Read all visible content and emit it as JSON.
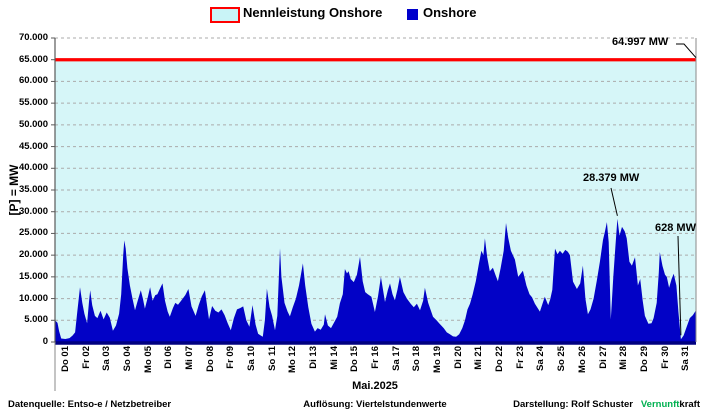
{
  "legend": {
    "capacity_label": "Nennleistung Onshore",
    "onshore_label": "Onshore"
  },
  "colors": {
    "onshore_area": "#0202c6",
    "legend_onshore_square": "#0000cc",
    "capacity_line": "#ff0000",
    "capacity_fill": "#d6f6f8",
    "legend_capacity_fill": "#c9f4f7",
    "grid": "#ababab",
    "axis_bottom": "#000080",
    "brand_green": "#00b050"
  },
  "y_axis": {
    "title": "[P] = MW",
    "tick_labels": [
      "70.000",
      "65.000",
      "60.000",
      "55.000",
      "50.000",
      "45.000",
      "40.000",
      "35.000",
      "30.000",
      "25.000",
      "20.000",
      "15.000",
      "10.000",
      "5.000",
      "0"
    ]
  },
  "x_axis": {
    "title": "Mai.2025",
    "labels": [
      "Do 01",
      "Fr 02",
      "Sa 03",
      "So 04",
      "Mo 05",
      "Di 06",
      "Mi 07",
      "Do 08",
      "Fr 09",
      "Sa 10",
      "So 11",
      "Mo 12",
      "Di 13",
      "Mi 14",
      "Do 15",
      "Fr 16",
      "Sa 17",
      "So 18",
      "Mo 19",
      "Di 20",
      "Mi 21",
      "Do 22",
      "Fr 23",
      "Sa 24",
      "So 25",
      "Mo 26",
      "Di 27",
      "Mi 28",
      "Do 29",
      "Fr 30",
      "Sa 31"
    ]
  },
  "footer": {
    "source": "Datenquelle:  Entso-e  / Netzbetreiber",
    "resolution": "Auflösung: Viertelstundenwerte",
    "credit": "Darstellung:  Rolf Schuster",
    "brand_green": "Vernunft",
    "brand_black": "kraft"
  },
  "chart_data": {
    "type": "area",
    "title": "",
    "xlabel": "Mai.2025",
    "ylabel": "[P] = MW",
    "ylim": [
      0,
      70000
    ],
    "x_days": 31,
    "resolution": "Viertelstundenwerte",
    "capacity_mw": 64997,
    "annotations": [
      {
        "text": "64.997 MW",
        "day": 31,
        "mw": 64997
      },
      {
        "text": "28.379 MW",
        "day": 27.2,
        "mw": 28379
      },
      {
        "text": "628 MW",
        "day": 30.27,
        "mw": 628
      }
    ],
    "series": [
      {
        "name": "Onshore",
        "points": [
          [
            0,
            5000
          ],
          [
            0.12,
            4400
          ],
          [
            0.2,
            2500
          ],
          [
            0.3,
            800
          ],
          [
            0.5,
            700
          ],
          [
            0.7,
            900
          ],
          [
            0.85,
            1500
          ],
          [
            0.97,
            2200
          ],
          [
            1.08,
            7000
          ],
          [
            1.21,
            12600
          ],
          [
            1.32,
            9000
          ],
          [
            1.42,
            6500
          ],
          [
            1.55,
            4300
          ],
          [
            1.65,
            9500
          ],
          [
            1.7,
            11900
          ],
          [
            1.8,
            8500
          ],
          [
            1.93,
            6000
          ],
          [
            2.05,
            5500
          ],
          [
            2.2,
            7200
          ],
          [
            2.35,
            5200
          ],
          [
            2.5,
            6800
          ],
          [
            2.65,
            5600
          ],
          [
            2.8,
            2600
          ],
          [
            2.95,
            3800
          ],
          [
            3.1,
            6500
          ],
          [
            3.2,
            11000
          ],
          [
            3.3,
            20000
          ],
          [
            3.35,
            23400
          ],
          [
            3.42,
            21500
          ],
          [
            3.5,
            17000
          ],
          [
            3.62,
            13000
          ],
          [
            3.75,
            10000
          ],
          [
            3.87,
            7300
          ],
          [
            4,
            9500
          ],
          [
            4.15,
            11900
          ],
          [
            4.25,
            10000
          ],
          [
            4.35,
            7700
          ],
          [
            4.5,
            10500
          ],
          [
            4.6,
            12600
          ],
          [
            4.72,
            9500
          ],
          [
            4.85,
            10800
          ],
          [
            4.95,
            11000
          ],
          [
            5.07,
            12200
          ],
          [
            5.2,
            13500
          ],
          [
            5.32,
            9500
          ],
          [
            5.45,
            7000
          ],
          [
            5.55,
            5800
          ],
          [
            5.7,
            7800
          ],
          [
            5.82,
            9000
          ],
          [
            5.95,
            8600
          ],
          [
            6.1,
            9500
          ],
          [
            6.3,
            10800
          ],
          [
            6.45,
            12200
          ],
          [
            6.6,
            8200
          ],
          [
            6.8,
            6000
          ],
          [
            6.95,
            8500
          ],
          [
            7.1,
            10500
          ],
          [
            7.25,
            11900
          ],
          [
            7.38,
            7500
          ],
          [
            7.45,
            5200
          ],
          [
            7.6,
            8300
          ],
          [
            7.75,
            7200
          ],
          [
            7.9,
            6800
          ],
          [
            8.05,
            7500
          ],
          [
            8.2,
            6200
          ],
          [
            8.35,
            4300
          ],
          [
            8.5,
            2700
          ],
          [
            8.65,
            5500
          ],
          [
            8.8,
            7500
          ],
          [
            8.95,
            7800
          ],
          [
            9.1,
            8200
          ],
          [
            9.25,
            5000
          ],
          [
            9.4,
            3500
          ],
          [
            9.55,
            8500
          ],
          [
            9.7,
            4000
          ],
          [
            9.82,
            1900
          ],
          [
            9.95,
            1500
          ],
          [
            10.05,
            1200
          ],
          [
            10.15,
            5000
          ],
          [
            10.25,
            12300
          ],
          [
            10.38,
            8000
          ],
          [
            10.5,
            6000
          ],
          [
            10.64,
            2700
          ],
          [
            10.75,
            6000
          ],
          [
            10.88,
            21600
          ],
          [
            10.95,
            15000
          ],
          [
            11.1,
            9000
          ],
          [
            11.25,
            7000
          ],
          [
            11.36,
            5900
          ],
          [
            11.5,
            8000
          ],
          [
            11.65,
            10000
          ],
          [
            11.8,
            13000
          ],
          [
            11.99,
            18100
          ],
          [
            12.1,
            13000
          ],
          [
            12.25,
            8000
          ],
          [
            12.4,
            4200
          ],
          [
            12.57,
            2400
          ],
          [
            12.7,
            3200
          ],
          [
            12.85,
            2800
          ],
          [
            13,
            4000
          ],
          [
            13.06,
            6400
          ],
          [
            13.2,
            3800
          ],
          [
            13.35,
            3200
          ],
          [
            13.5,
            4500
          ],
          [
            13.65,
            5800
          ],
          [
            13.78,
            8900
          ],
          [
            13.92,
            11000
          ],
          [
            14.02,
            16800
          ],
          [
            14.12,
            15800
          ],
          [
            14.2,
            16300
          ],
          [
            14.3,
            14500
          ],
          [
            14.45,
            13800
          ],
          [
            14.6,
            15500
          ],
          [
            14.75,
            19600
          ],
          [
            14.88,
            14000
          ],
          [
            15,
            11500
          ],
          [
            15.13,
            11000
          ],
          [
            15.3,
            10400
          ],
          [
            15.47,
            6900
          ],
          [
            15.62,
            10500
          ],
          [
            15.76,
            15000
          ],
          [
            15.96,
            9200
          ],
          [
            16.1,
            12000
          ],
          [
            16.2,
            13500
          ],
          [
            16.32,
            11000
          ],
          [
            16.44,
            9600
          ],
          [
            16.56,
            12000
          ],
          [
            16.68,
            15000
          ],
          [
            16.85,
            11500
          ],
          [
            17.02,
            10000
          ],
          [
            17.2,
            8800
          ],
          [
            17.35,
            8000
          ],
          [
            17.5,
            8800
          ],
          [
            17.65,
            7300
          ],
          [
            17.8,
            9500
          ],
          [
            17.89,
            12500
          ],
          [
            18.05,
            9000
          ],
          [
            18.28,
            5800
          ],
          [
            18.45,
            5000
          ],
          [
            18.6,
            4200
          ],
          [
            18.8,
            3200
          ],
          [
            18.95,
            2200
          ],
          [
            19.1,
            1800
          ],
          [
            19.25,
            1300
          ],
          [
            19.4,
            1200
          ],
          [
            19.55,
            1800
          ],
          [
            19.7,
            3200
          ],
          [
            19.83,
            5000
          ],
          [
            19.95,
            7500
          ],
          [
            20.07,
            8800
          ],
          [
            20.2,
            11000
          ],
          [
            20.35,
            14000
          ],
          [
            20.5,
            18000
          ],
          [
            20.62,
            21000
          ],
          [
            20.72,
            20000
          ],
          [
            20.79,
            23900
          ],
          [
            20.9,
            19500
          ],
          [
            21.03,
            16300
          ],
          [
            21.18,
            17100
          ],
          [
            21.3,
            15500
          ],
          [
            21.42,
            14000
          ],
          [
            21.55,
            17000
          ],
          [
            21.7,
            21000
          ],
          [
            21.81,
            27400
          ],
          [
            21.92,
            24000
          ],
          [
            22.05,
            21000
          ],
          [
            22.24,
            19000
          ],
          [
            22.4,
            15000
          ],
          [
            22.63,
            16400
          ],
          [
            22.8,
            13000
          ],
          [
            22.95,
            11000
          ],
          [
            23.07,
            10300
          ],
          [
            23.21,
            8800
          ],
          [
            23.45,
            7000
          ],
          [
            23.69,
            10400
          ],
          [
            23.85,
            8500
          ],
          [
            23.95,
            9800
          ],
          [
            24.05,
            12000
          ],
          [
            24.18,
            21500
          ],
          [
            24.3,
            20200
          ],
          [
            24.42,
            21000
          ],
          [
            24.55,
            20300
          ],
          [
            24.68,
            21200
          ],
          [
            24.8,
            20800
          ],
          [
            24.9,
            20000
          ],
          [
            25.05,
            13900
          ],
          [
            25.24,
            12200
          ],
          [
            25.4,
            13500
          ],
          [
            25.53,
            17600
          ],
          [
            25.65,
            10000
          ],
          [
            25.77,
            6400
          ],
          [
            25.9,
            7500
          ],
          [
            26.05,
            10000
          ],
          [
            26.2,
            14000
          ],
          [
            26.35,
            18500
          ],
          [
            26.5,
            23500
          ],
          [
            26.6,
            25500
          ],
          [
            26.69,
            27600
          ],
          [
            26.78,
            23000
          ],
          [
            26.88,
            5200
          ],
          [
            27,
            15000
          ],
          [
            27.1,
            22000
          ],
          [
            27.2,
            28379
          ],
          [
            27.3,
            24500
          ],
          [
            27.42,
            26500
          ],
          [
            27.55,
            25500
          ],
          [
            27.65,
            23900
          ],
          [
            27.78,
            18500
          ],
          [
            27.9,
            17600
          ],
          [
            28.05,
            19500
          ],
          [
            28.19,
            13000
          ],
          [
            28.3,
            14500
          ],
          [
            28.42,
            9500
          ],
          [
            28.53,
            6000
          ],
          [
            28.7,
            4200
          ],
          [
            28.85,
            4300
          ],
          [
            28.95,
            5500
          ],
          [
            29.1,
            9000
          ],
          [
            29.2,
            16000
          ],
          [
            29.25,
            20700
          ],
          [
            29.38,
            17500
          ],
          [
            29.5,
            15500
          ],
          [
            29.59,
            15000
          ],
          [
            29.7,
            12500
          ],
          [
            29.82,
            14500
          ],
          [
            29.92,
            15700
          ],
          [
            30.05,
            13000
          ],
          [
            30.15,
            7000
          ],
          [
            30.27,
            628
          ],
          [
            30.4,
            1500
          ],
          [
            30.55,
            3500
          ],
          [
            30.7,
            5500
          ],
          [
            30.85,
            6200
          ],
          [
            31,
            7300
          ]
        ]
      }
    ]
  }
}
